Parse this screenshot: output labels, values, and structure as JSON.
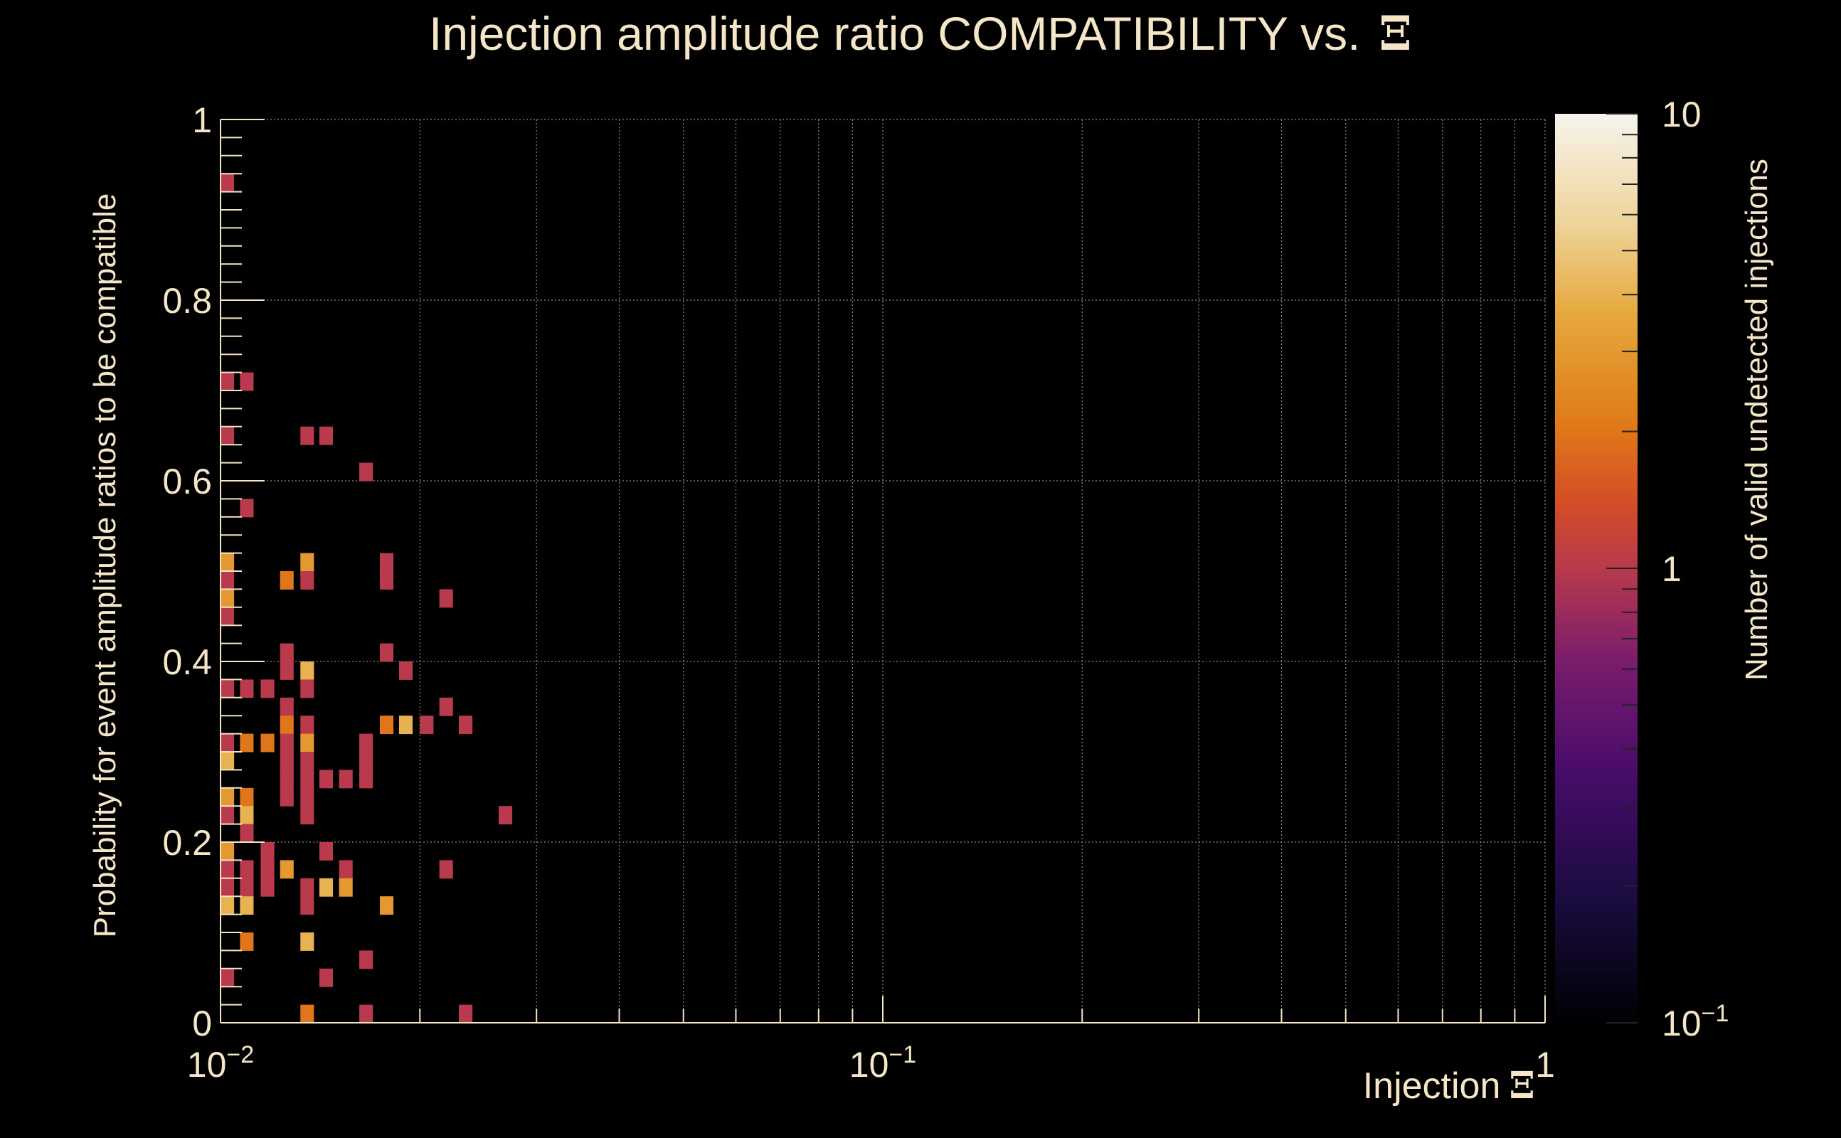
{
  "chart_data": {
    "type": "heatmap",
    "title": "Injection amplitude ratio COMPATIBILITY vs.",
    "title_symbol": "Ξ",
    "xlabel": "Injection",
    "xlabel_symbol": "Ξ",
    "ylabel": "Probability for event amplitude ratios to be compatible",
    "zlabel": "Number of valid undetected injections",
    "x_scale": "log",
    "xlim": [
      0.01,
      1
    ],
    "ylim": [
      0,
      1
    ],
    "z_scale": "log",
    "zlim": [
      0.1,
      10
    ],
    "x_ticks": [
      {
        "value": 0.01,
        "base": "10",
        "exp": "−2"
      },
      {
        "value": 0.1,
        "base": "10",
        "exp": "−1"
      },
      {
        "value": 1,
        "base": "1",
        "exp": ""
      }
    ],
    "y_ticks": [
      {
        "value": 0,
        "label": "0"
      },
      {
        "value": 0.2,
        "label": "0.2"
      },
      {
        "value": 0.4,
        "label": "0.4"
      },
      {
        "value": 0.6,
        "label": "0.6"
      },
      {
        "value": 0.8,
        "label": "0.8"
      },
      {
        "value": 1,
        "label": "1"
      }
    ],
    "z_ticks": [
      {
        "value": 10,
        "base": "10",
        "exp": ""
      },
      {
        "value": 1,
        "base": "1",
        "exp": ""
      },
      {
        "value": 0.1,
        "base": "10",
        "exp": "−1"
      }
    ],
    "grid": true,
    "bins": {
      "x_count": 100,
      "y_count": 50
    },
    "cells": [
      [
        0.01,
        0.92,
        1
      ],
      [
        0.01,
        0.7,
        1
      ],
      [
        0.0107,
        0.7,
        1
      ],
      [
        0.01,
        0.64,
        1
      ],
      [
        0.0132,
        0.64,
        1
      ],
      [
        0.0141,
        0.64,
        1
      ],
      [
        0.0162,
        0.6,
        1
      ],
      [
        0.0107,
        0.56,
        1
      ],
      [
        0.01,
        0.5,
        3
      ],
      [
        0.0132,
        0.5,
        3
      ],
      [
        0.0174,
        0.5,
        1
      ],
      [
        0.01,
        0.48,
        1
      ],
      [
        0.0123,
        0.48,
        2
      ],
      [
        0.0132,
        0.48,
        1
      ],
      [
        0.0174,
        0.48,
        1
      ],
      [
        0.01,
        0.46,
        3
      ],
      [
        0.0214,
        0.46,
        1
      ],
      [
        0.01,
        0.44,
        1
      ],
      [
        0.0123,
        0.4,
        1
      ],
      [
        0.0174,
        0.4,
        1
      ],
      [
        0.0123,
        0.38,
        1
      ],
      [
        0.0132,
        0.38,
        4
      ],
      [
        0.0186,
        0.38,
        1
      ],
      [
        0.01,
        0.36,
        1
      ],
      [
        0.0107,
        0.36,
        1
      ],
      [
        0.0115,
        0.36,
        1
      ],
      [
        0.0132,
        0.36,
        1
      ],
      [
        0.0123,
        0.34,
        1
      ],
      [
        0.0214,
        0.34,
        1
      ],
      [
        0.0123,
        0.32,
        2
      ],
      [
        0.0132,
        0.32,
        1
      ],
      [
        0.0174,
        0.32,
        2
      ],
      [
        0.0186,
        0.32,
        4
      ],
      [
        0.02,
        0.32,
        1
      ],
      [
        0.0229,
        0.32,
        1
      ],
      [
        0.01,
        0.3,
        1
      ],
      [
        0.0107,
        0.3,
        2
      ],
      [
        0.0115,
        0.3,
        2
      ],
      [
        0.0123,
        0.3,
        1
      ],
      [
        0.0132,
        0.3,
        3
      ],
      [
        0.0162,
        0.3,
        1
      ],
      [
        0.01,
        0.28,
        4
      ],
      [
        0.0123,
        0.28,
        1
      ],
      [
        0.0132,
        0.28,
        1
      ],
      [
        0.0162,
        0.28,
        1
      ],
      [
        0.0123,
        0.26,
        1
      ],
      [
        0.0132,
        0.26,
        1
      ],
      [
        0.0141,
        0.26,
        1
      ],
      [
        0.0151,
        0.26,
        1
      ],
      [
        0.0162,
        0.26,
        1
      ],
      [
        0.01,
        0.24,
        3
      ],
      [
        0.0107,
        0.24,
        2
      ],
      [
        0.0123,
        0.24,
        1
      ],
      [
        0.0132,
        0.24,
        1
      ],
      [
        0.01,
        0.22,
        1
      ],
      [
        0.0107,
        0.22,
        4
      ],
      [
        0.0132,
        0.22,
        1
      ],
      [
        0.0263,
        0.22,
        1
      ],
      [
        0.0107,
        0.2,
        1
      ],
      [
        0.01,
        0.18,
        3
      ],
      [
        0.0115,
        0.18,
        1
      ],
      [
        0.0141,
        0.18,
        1
      ],
      [
        0.01,
        0.16,
        1
      ],
      [
        0.0107,
        0.16,
        1
      ],
      [
        0.0115,
        0.16,
        1
      ],
      [
        0.0123,
        0.16,
        3
      ],
      [
        0.0151,
        0.16,
        1
      ],
      [
        0.0214,
        0.16,
        1
      ],
      [
        0.01,
        0.14,
        1
      ],
      [
        0.0107,
        0.14,
        1
      ],
      [
        0.0115,
        0.14,
        1
      ],
      [
        0.0132,
        0.14,
        1
      ],
      [
        0.0141,
        0.14,
        4
      ],
      [
        0.0151,
        0.14,
        3
      ],
      [
        0.01,
        0.12,
        4
      ],
      [
        0.0107,
        0.12,
        4
      ],
      [
        0.0132,
        0.12,
        1
      ],
      [
        0.0174,
        0.12,
        3
      ],
      [
        0.0107,
        0.08,
        2
      ],
      [
        0.0132,
        0.08,
        4
      ],
      [
        0.0162,
        0.06,
        1
      ],
      [
        0.01,
        0.04,
        1
      ],
      [
        0.0141,
        0.04,
        1
      ],
      [
        0.0132,
        0.0,
        2
      ],
      [
        0.0162,
        0.0,
        1
      ],
      [
        0.0229,
        0.0,
        1
      ]
    ]
  }
}
